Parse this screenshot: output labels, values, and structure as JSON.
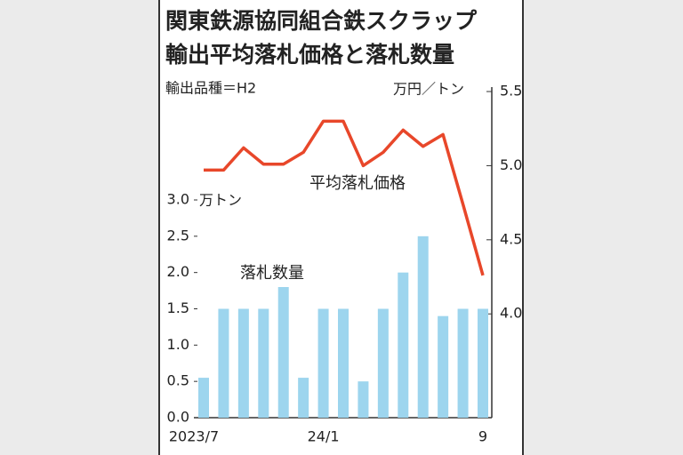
{
  "chart_data": {
    "type": "bar",
    "title": [
      "関東鉄源協同組合鉄スクラップ",
      "輸出平均落札価格と落札数量"
    ],
    "subtitle": "輸出品種＝H2",
    "y_label": "万トン",
    "y2_label": "万円／トン",
    "categories": [
      "2023/7",
      null,
      null,
      null,
      null,
      null,
      "24/1",
      null,
      null,
      null,
      null,
      null,
      null,
      null,
      "9"
    ],
    "series": [
      {
        "name": "落札数量",
        "type": "bar",
        "color": "#9dd5ee",
        "values": [
          0.55,
          1.5,
          1.5,
          1.5,
          1.8,
          0.55,
          1.5,
          1.5,
          0.5,
          1.5,
          2.0,
          2.5,
          1.4,
          1.5,
          1.5
        ]
      },
      {
        "name": "平均落札価格",
        "type": "line",
        "axis": "y2",
        "color": "#e8472a",
        "values": [
          4.97,
          4.97,
          5.12,
          5.01,
          5.01,
          5.09,
          5.3,
          5.3,
          5.0,
          5.09,
          5.24,
          5.13,
          5.21,
          4.74,
          4.26
        ]
      }
    ],
    "ylim": [
      0,
      3.0
    ],
    "yticks": [
      {
        "value": 0,
        "label": "0.0"
      },
      0.5,
      {
        "value": 1,
        "label": "1.0"
      },
      1.5,
      {
        "value": 2,
        "label": "2.0"
      },
      2.5,
      {
        "value": 3,
        "label": "3.0"
      }
    ],
    "y2lim": [
      3.3,
      5.5
    ],
    "y2ticks": [
      {
        "value": 4,
        "label": "4.0"
      },
      4.5,
      {
        "value": 5,
        "label": "5.0"
      },
      5.5
    ]
  }
}
